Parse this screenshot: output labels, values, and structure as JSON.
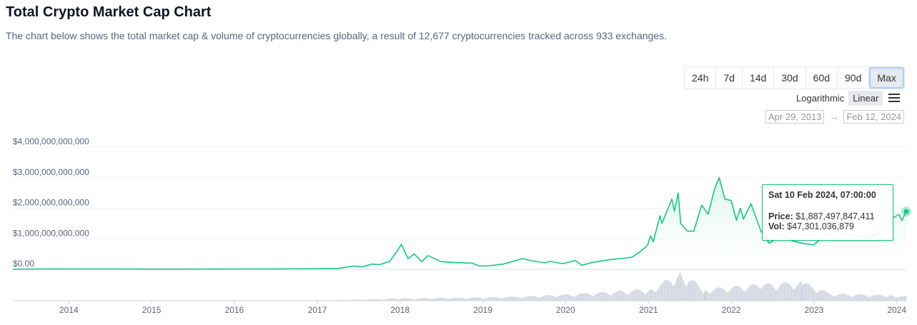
{
  "header": {
    "title": "Total Crypto Market Cap Chart",
    "description": "The chart below shows the total market cap & volume of cryptocurrencies globally, a result of 12,677 cryptocurrencies tracked across 933 exchanges."
  },
  "range_tabs": [
    {
      "label": "24h",
      "active": false
    },
    {
      "label": "7d",
      "active": false
    },
    {
      "label": "14d",
      "active": false
    },
    {
      "label": "30d",
      "active": false
    },
    {
      "label": "60d",
      "active": false
    },
    {
      "label": "90d",
      "active": false
    },
    {
      "label": "Max",
      "active": true
    }
  ],
  "scale": {
    "logarithmic_label": "Logarithmic",
    "linear_label": "Linear",
    "active": "Linear",
    "menu_icon": "hamburger-menu-icon"
  },
  "date_range": {
    "from": "Apr 29, 2013",
    "arrow": "→",
    "to": "Feb 12, 2024"
  },
  "tooltip": {
    "date": "Sat 10 Feb 2024, 07:00:00",
    "price_label": "Price:",
    "price_value": "$1,887,497,847,411",
    "vol_label": "Vol:",
    "vol_value": "$47,301,036,879"
  },
  "colors": {
    "line": "#16c784",
    "area_top": "#d6f3e3",
    "volume": "#c7cdd9",
    "grid": "#eff2f5"
  },
  "chart_data": {
    "type": "line",
    "x_type": "date",
    "y_tick_labels": [
      "$4,000,000,000,000",
      "$3,000,000,000,000",
      "$2,000,000,000,000",
      "$1,000,000,000,000",
      "$0.00"
    ],
    "y_ticks": [
      4000000000000,
      3000000000000,
      2000000000000,
      1000000000000,
      0
    ],
    "x_tick_labels": [
      "2014",
      "2015",
      "2016",
      "2017",
      "2018",
      "2019",
      "2020",
      "2021",
      "2022",
      "2023",
      "2024"
    ],
    "xlim": [
      "2013-04-29",
      "2024-02-12"
    ],
    "ylim": [
      0,
      4000000000000
    ],
    "grid": true,
    "series": [
      {
        "values": [
          [
            "2013-04-29",
            1500000000
          ],
          [
            "2013-11-30",
            13000000000
          ],
          [
            "2014-01-01",
            10000000000
          ],
          [
            "2014-06-01",
            8500000000
          ],
          [
            "2015-01-01",
            5500000000
          ],
          [
            "2016-01-01",
            7000000000
          ],
          [
            "2016-06-15",
            12000000000
          ],
          [
            "2017-01-01",
            18000000000
          ],
          [
            "2017-04-01",
            25000000000
          ],
          [
            "2017-06-12",
            110000000000
          ],
          [
            "2017-07-15",
            80000000000
          ],
          [
            "2017-09-01",
            170000000000
          ],
          [
            "2017-10-01",
            150000000000
          ],
          [
            "2017-11-15",
            250000000000
          ],
          [
            "2017-12-20",
            600000000000
          ],
          [
            "2018-01-07",
            820000000000
          ],
          [
            "2018-02-05",
            350000000000
          ],
          [
            "2018-03-05",
            500000000000
          ],
          [
            "2018-04-06",
            250000000000
          ],
          [
            "2018-05-05",
            450000000000
          ],
          [
            "2018-07-01",
            250000000000
          ],
          [
            "2018-09-01",
            220000000000
          ],
          [
            "2018-11-14",
            200000000000
          ],
          [
            "2018-12-15",
            110000000000
          ],
          [
            "2019-02-01",
            115000000000
          ],
          [
            "2019-04-02",
            170000000000
          ],
          [
            "2019-06-26",
            350000000000
          ],
          [
            "2019-08-01",
            280000000000
          ],
          [
            "2019-10-01",
            210000000000
          ],
          [
            "2019-10-26",
            260000000000
          ],
          [
            "2019-12-18",
            185000000000
          ],
          [
            "2020-02-14",
            290000000000
          ],
          [
            "2020-03-13",
            130000000000
          ],
          [
            "2020-05-01",
            230000000000
          ],
          [
            "2020-07-27",
            330000000000
          ],
          [
            "2020-09-05",
            350000000000
          ],
          [
            "2020-10-21",
            400000000000
          ],
          [
            "2020-11-24",
            570000000000
          ],
          [
            "2020-12-27",
            780000000000
          ],
          [
            "2021-01-10",
            1100000000000
          ],
          [
            "2021-01-22",
            900000000000
          ],
          [
            "2021-02-21",
            1750000000000
          ],
          [
            "2021-03-01",
            1500000000000
          ],
          [
            "2021-04-14",
            2300000000000
          ],
          [
            "2021-04-25",
            1900000000000
          ],
          [
            "2021-05-12",
            2500000000000
          ],
          [
            "2021-05-23",
            1500000000000
          ],
          [
            "2021-06-22",
            1250000000000
          ],
          [
            "2021-07-20",
            1250000000000
          ],
          [
            "2021-08-23",
            2100000000000
          ],
          [
            "2021-09-21",
            1800000000000
          ],
          [
            "2021-10-20",
            2650000000000
          ],
          [
            "2021-11-09",
            3000000000000
          ],
          [
            "2021-12-04",
            2300000000000
          ],
          [
            "2022-01-01",
            2250000000000
          ],
          [
            "2022-01-24",
            1600000000000
          ],
          [
            "2022-02-10",
            2000000000000
          ],
          [
            "2022-02-24",
            1650000000000
          ],
          [
            "2022-03-29",
            2150000000000
          ],
          [
            "2022-05-12",
            1250000000000
          ],
          [
            "2022-06-18",
            850000000000
          ],
          [
            "2022-08-14",
            1150000000000
          ],
          [
            "2022-09-20",
            950000000000
          ],
          [
            "2022-11-09",
            850000000000
          ],
          [
            "2022-12-31",
            800000000000
          ],
          [
            "2023-02-15",
            1100000000000
          ],
          [
            "2023-04-15",
            1250000000000
          ],
          [
            "2023-06-15",
            1100000000000
          ],
          [
            "2023-09-11",
            1050000000000
          ],
          [
            "2023-11-01",
            1350000000000
          ],
          [
            "2023-12-08",
            1650000000000
          ],
          [
            "2024-01-11",
            1800000000000
          ],
          [
            "2024-01-23",
            1600000000000
          ],
          [
            "2024-02-12",
            1890000000000
          ]
        ]
      },
      {
        "type": "bar",
        "values": [
          [
            "2017-01-01",
            3000000000
          ],
          [
            "2017-12-15",
            45000000000
          ],
          [
            "2019-05-15",
            80000000000
          ],
          [
            "2020-03-12",
            150000000000
          ],
          [
            "2021-01-11",
            250000000000
          ],
          [
            "2021-05-19",
            600000000000
          ],
          [
            "2021-09-07",
            250000000000
          ],
          [
            "2022-05-12",
            350000000000
          ],
          [
            "2022-11-09",
            400000000000
          ],
          [
            "2023-03-15",
            150000000000
          ],
          [
            "2023-12-01",
            120000000000
          ],
          [
            "2024-02-12",
            90000000000
          ]
        ]
      }
    ]
  }
}
